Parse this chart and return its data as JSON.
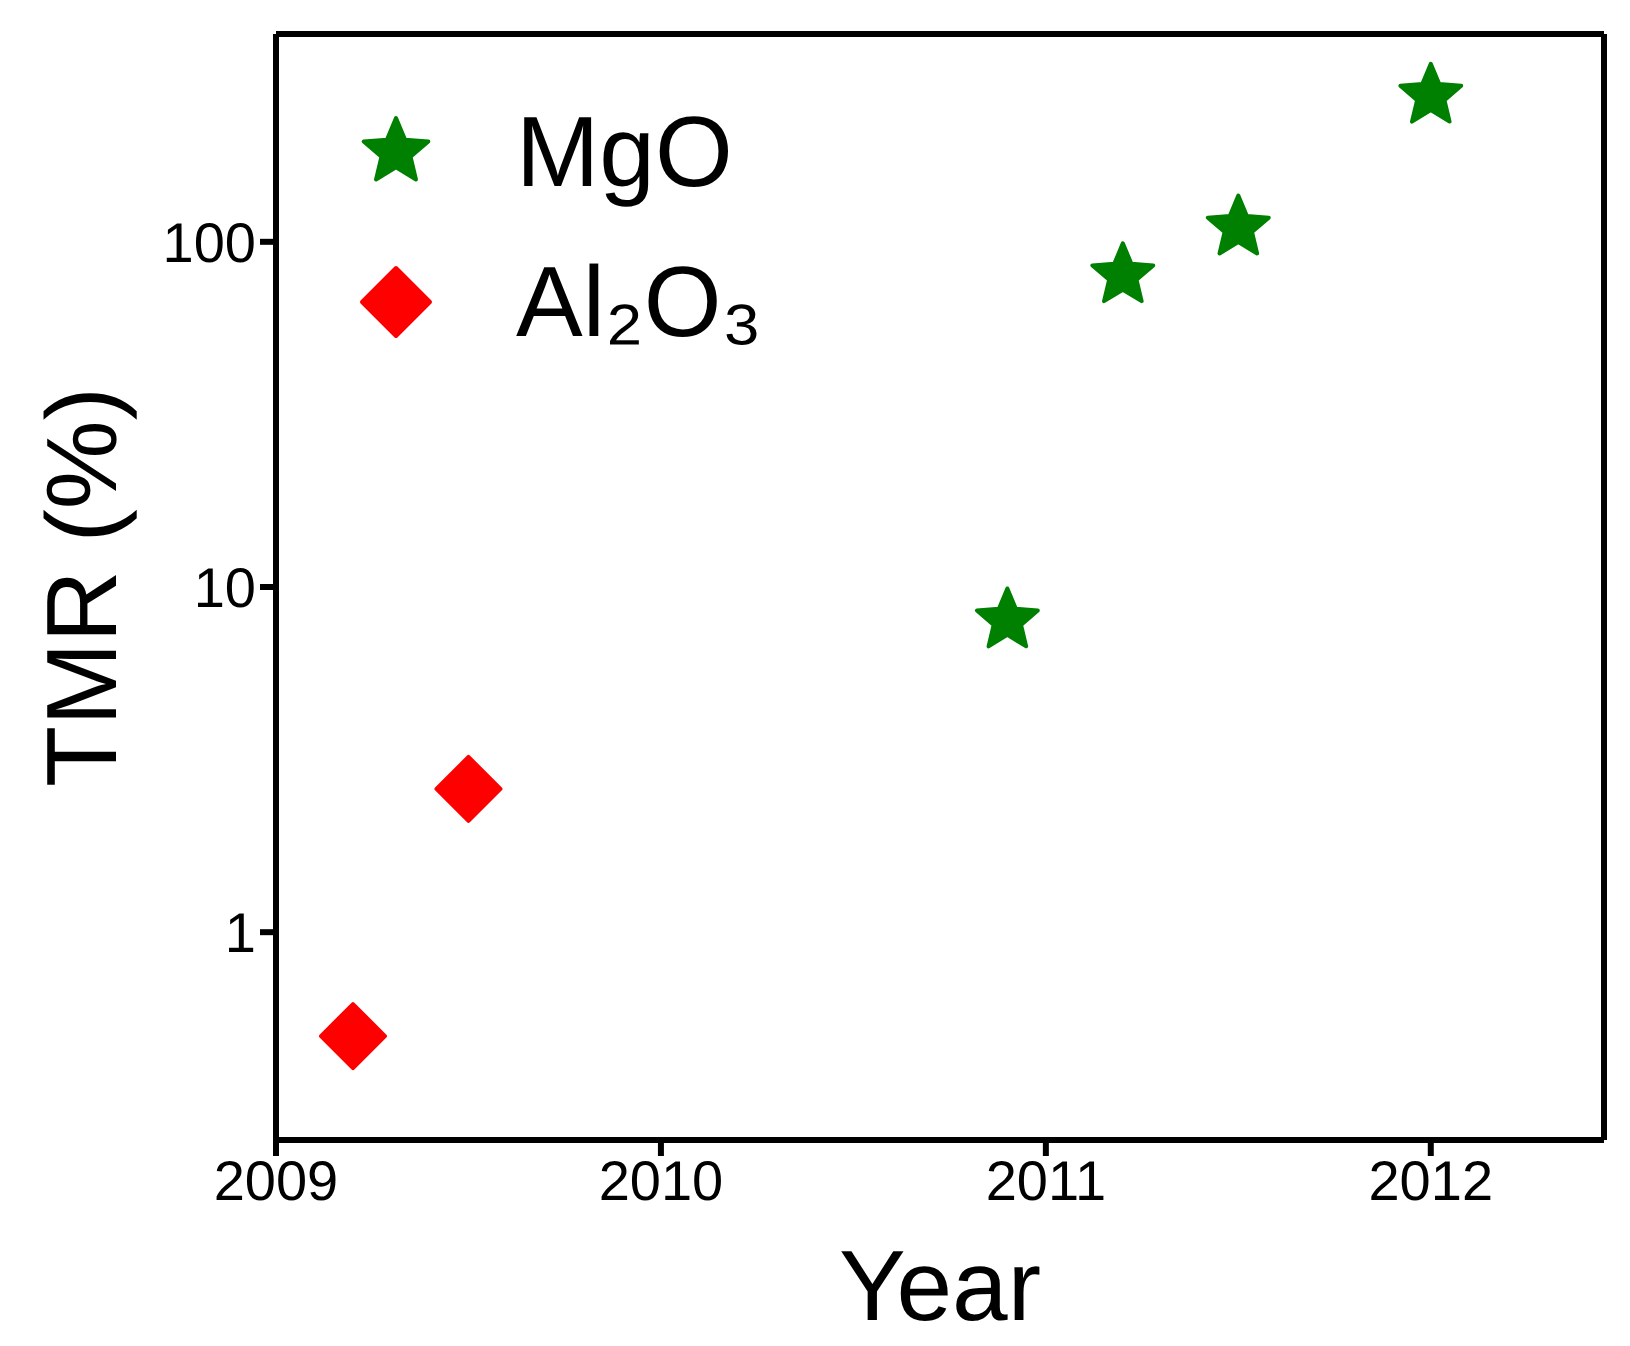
{
  "chart_data": {
    "type": "scatter",
    "xlabel": "Year",
    "ylabel": "TMR (%)",
    "log": "y",
    "xlim": [
      2009,
      2012.45
    ],
    "xticks": [
      2009,
      2010,
      2011,
      2012
    ],
    "ylim": [
      0.25,
      400
    ],
    "yticks": [
      1,
      10,
      100
    ],
    "legend": "top left",
    "grid": false,
    "series": [
      {
        "name": "MgO",
        "color": "#008000",
        "marker": "star",
        "x": [
          2010.9,
          2011.2,
          2011.5,
          2012.0
        ],
        "values": [
          8,
          80,
          110,
          265
        ]
      },
      {
        "name": "Al₂O₃",
        "color": "#ff0000",
        "marker": "diamond",
        "x": [
          2009.2,
          2009.5
        ],
        "values": [
          0.5,
          2.6
        ]
      }
    ]
  }
}
